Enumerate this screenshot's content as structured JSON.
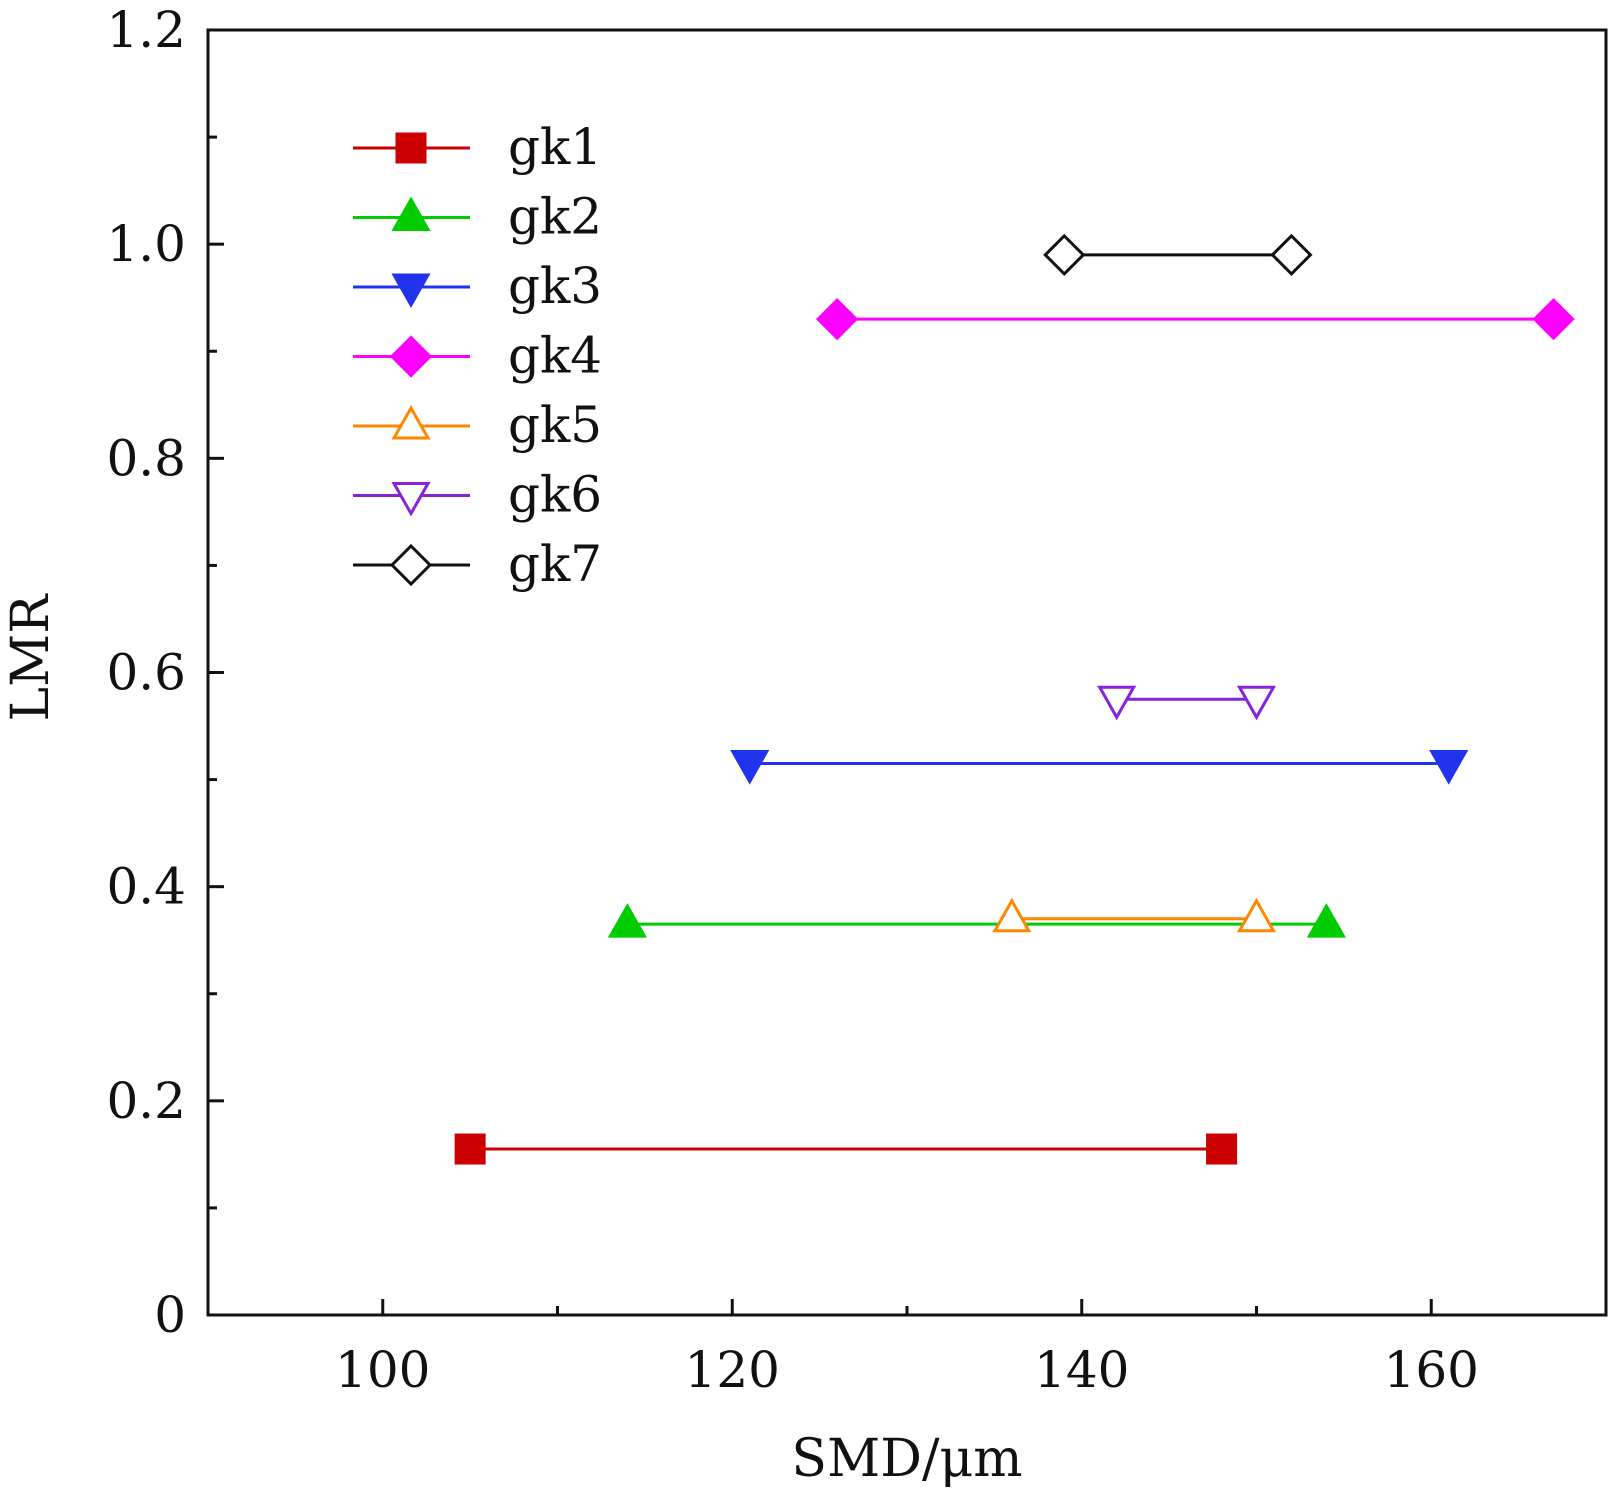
{
  "chart_data": {
    "type": "line",
    "xlabel": "SMD/μm",
    "ylabel": "LMR",
    "xlim": [
      90,
      170
    ],
    "ylim": [
      0,
      1.2
    ],
    "x_ticks": [
      100,
      120,
      140,
      160
    ],
    "x_tick_labels": [
      "100",
      "120",
      "140",
      "160"
    ],
    "x_minor_ticks": [
      110,
      130,
      150
    ],
    "y_ticks": [
      0,
      0.2,
      0.4,
      0.6,
      0.8,
      1.0,
      1.2
    ],
    "y_tick_labels": [
      "0",
      "0.2",
      "0.4",
      "0.6",
      "0.8",
      "1.0",
      "1.2"
    ],
    "y_minor_ticks": [
      0.1,
      0.3,
      0.5,
      0.7,
      0.9,
      1.1
    ],
    "grid": false,
    "legend_position": "top-left",
    "series": [
      {
        "name": "gk1",
        "color": "#cc0000",
        "marker": "square",
        "filled": true,
        "x": [
          105,
          148
        ],
        "y": [
          0.155,
          0.155
        ]
      },
      {
        "name": "gk2",
        "color": "#00cc00",
        "marker": "triangle-up",
        "filled": true,
        "x": [
          114,
          154
        ],
        "y": [
          0.365,
          0.365
        ]
      },
      {
        "name": "gk3",
        "color": "#2233ee",
        "marker": "triangle-down",
        "filled": true,
        "x": [
          121,
          161
        ],
        "y": [
          0.515,
          0.515
        ]
      },
      {
        "name": "gk4",
        "color": "#ff00ff",
        "marker": "diamond",
        "filled": true,
        "x": [
          126,
          167
        ],
        "y": [
          0.93,
          0.93
        ]
      },
      {
        "name": "gk5",
        "color": "#ff8800",
        "marker": "triangle-up",
        "filled": false,
        "x": [
          136,
          150
        ],
        "y": [
          0.37,
          0.37
        ]
      },
      {
        "name": "gk6",
        "color": "#8822dd",
        "marker": "triangle-down",
        "filled": false,
        "x": [
          142,
          150
        ],
        "y": [
          0.575,
          0.575
        ]
      },
      {
        "name": "gk7",
        "color": "#111111",
        "marker": "diamond",
        "filled": false,
        "x": [
          139,
          152
        ],
        "y": [
          0.99,
          0.99
        ]
      }
    ]
  }
}
